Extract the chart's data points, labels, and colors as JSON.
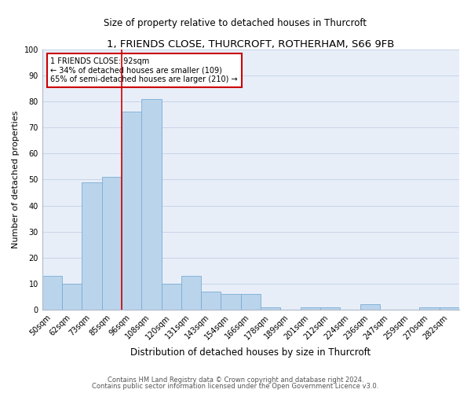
{
  "title": "1, FRIENDS CLOSE, THURCROFT, ROTHERHAM, S66 9FB",
  "subtitle": "Size of property relative to detached houses in Thurcroft",
  "xlabel": "Distribution of detached houses by size in Thurcroft",
  "ylabel": "Number of detached properties",
  "footnote1": "Contains HM Land Registry data © Crown copyright and database right 2024.",
  "footnote2": "Contains public sector information licensed under the Open Government Licence v3.0.",
  "annotation_line1": "1 FRIENDS CLOSE: 92sqm",
  "annotation_line2": "← 34% of detached houses are smaller (109)",
  "annotation_line3": "65% of semi-detached houses are larger (210) →",
  "bins": [
    "50sqm",
    "62sqm",
    "73sqm",
    "85sqm",
    "96sqm",
    "108sqm",
    "120sqm",
    "131sqm",
    "143sqm",
    "154sqm",
    "166sqm",
    "178sqm",
    "189sqm",
    "201sqm",
    "212sqm",
    "224sqm",
    "236sqm",
    "247sqm",
    "259sqm",
    "270sqm",
    "282sqm"
  ],
  "values": [
    13,
    10,
    49,
    51,
    76,
    81,
    10,
    13,
    7,
    6,
    6,
    1,
    0,
    1,
    1,
    0,
    2,
    0,
    0,
    1,
    1
  ],
  "bar_color": "#bad4ec",
  "bar_edge_color": "#7aadd4",
  "vline_x": 3.5,
  "vline_color": "#cc0000",
  "ylim": [
    0,
    100
  ],
  "yticks": [
    0,
    10,
    20,
    30,
    40,
    50,
    60,
    70,
    80,
    90,
    100
  ],
  "grid_color": "#c8d4e8",
  "bg_color": "#e8eef8",
  "box_color": "#cc0000",
  "title_fontsize": 9.5,
  "subtitle_fontsize": 8.5,
  "tick_fontsize": 7,
  "ylabel_fontsize": 8,
  "xlabel_fontsize": 8.5,
  "footnote_fontsize": 6,
  "annot_fontsize": 7
}
